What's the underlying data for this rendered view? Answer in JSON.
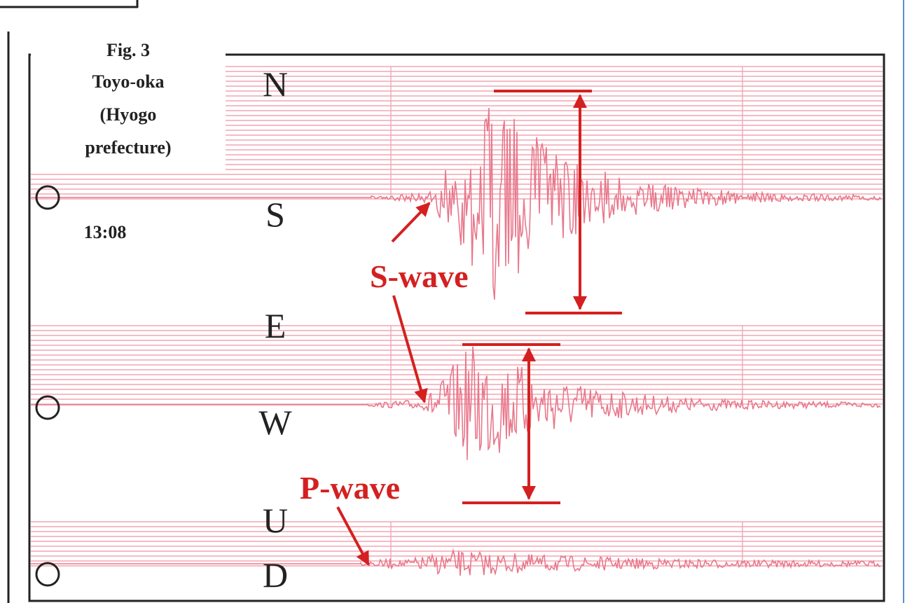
{
  "figure": {
    "label": "Fig. 3",
    "station": [
      "Toyo-oka",
      "(Hyogo",
      "prefecture)"
    ],
    "time": "13:08"
  },
  "channels": [
    {
      "top": "N",
      "bottom": "S"
    },
    {
      "top": "E",
      "bottom": "W"
    },
    {
      "top": "U",
      "bottom": "D"
    }
  ],
  "annotations": {
    "s_wave": "S-wave",
    "p_wave": "P-wave"
  }
}
